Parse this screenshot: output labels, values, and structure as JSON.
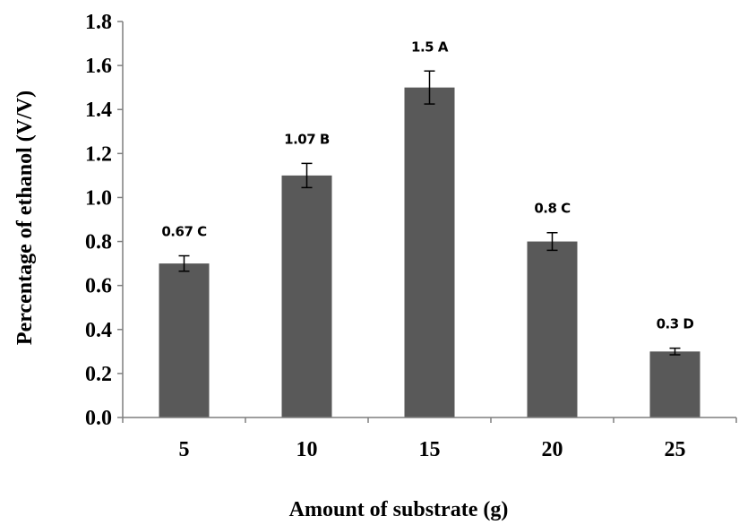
{
  "chart_data": {
    "type": "bar",
    "categories": [
      "5",
      "10",
      "15",
      "20",
      "25"
    ],
    "values": [
      0.7,
      1.1,
      1.5,
      0.8,
      0.3
    ],
    "errors": [
      0.035,
      0.055,
      0.075,
      0.04,
      0.015
    ],
    "data_labels": [
      "0.67 C",
      "1.07 B",
      "1.5 A",
      "0.8 C",
      "0.3 D"
    ],
    "title": "",
    "xlabel": "Amount of substrate (g)",
    "ylabel": "Percentage of ethanol (V/V)",
    "ylim": [
      0,
      1.8
    ],
    "yticks": [
      "0.0",
      "0.2",
      "0.4",
      "0.6",
      "0.8",
      "1.0",
      "1.2",
      "1.4",
      "1.6",
      "1.8"
    ],
    "grid": false,
    "legend": "none",
    "bar_color": "#595959",
    "axis_color": "#7f7f7f"
  }
}
